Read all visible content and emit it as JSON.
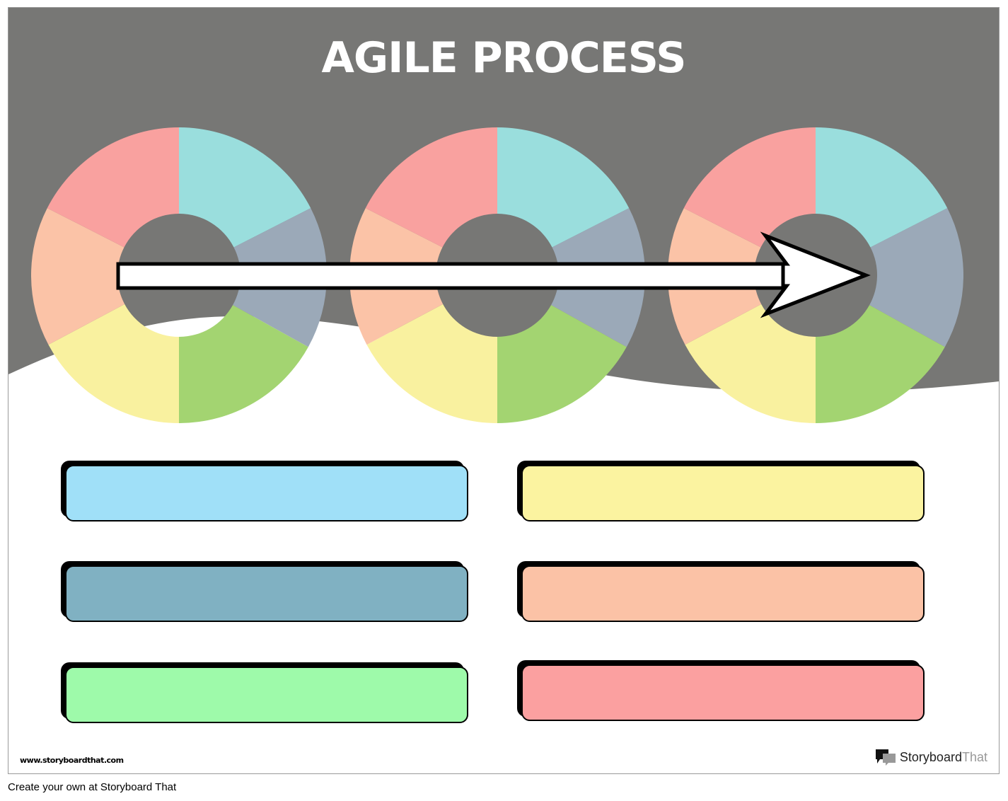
{
  "title": "AGILE PROCESS",
  "colors": {
    "background_gray": "#777775",
    "segments": [
      "#f9a19f",
      "#9adedd",
      "#9ba9b8",
      "#a3d471",
      "#f9f19f",
      "#fbc3a7"
    ],
    "boxes": [
      "#a0e0f8",
      "#fbf3a0",
      "#80b1c2",
      "#fbc2a6",
      "#9efaaa",
      "#fba0a0"
    ]
  },
  "cycles": 3,
  "watermark": "www.storyboardthat.com",
  "logo": {
    "part1": "Storyboard",
    "part2": "That"
  },
  "footer": "Create your own at Storyboard That"
}
